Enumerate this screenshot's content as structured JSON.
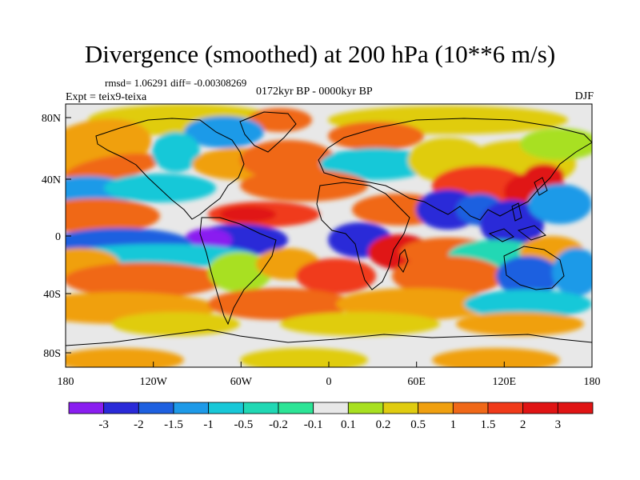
{
  "title": "Divergence (smoothed) at 200 hPa (10**6 m/s)",
  "stats": "rmsd= 1.06291 diff= -0.00308269",
  "period": "0172kyr BP - 0000kyr BP",
  "experiment": "Expt = teix9-teixa",
  "season": "DJF",
  "lat_ticks": [
    "80N",
    "40N",
    "0",
    "40S",
    "80S"
  ],
  "lon_ticks": [
    "180",
    "120W",
    "60W",
    "0",
    "60E",
    "120E",
    "180"
  ],
  "colorbar": {
    "labels": [
      "-3",
      "-2",
      "-1.5",
      "-1",
      "-0.5",
      "-0.2",
      "-0.1",
      "0.1",
      "0.2",
      "0.5",
      "1",
      "1.5",
      "2",
      "3"
    ],
    "colors": [
      "#8a1ef0",
      "#2a2ad8",
      "#1e60e0",
      "#1e9ae8",
      "#18c8d8",
      "#20d8b4",
      "#2ce496",
      "#e8e8e8",
      "#a8e020",
      "#e0cc10",
      "#f0a010",
      "#f06818",
      "#f03a1a",
      "#e01414"
    ]
  },
  "field_colors": {
    "neutral": "#e8e8e8",
    "land_lines": "#000000"
  }
}
